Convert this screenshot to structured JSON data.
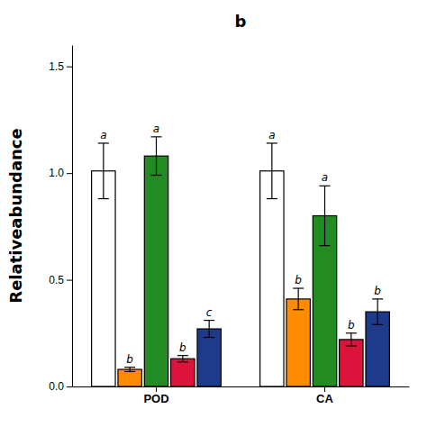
{
  "chart_data": {
    "type": "bar",
    "title": "b",
    "ylabel": "Relativeabundance",
    "categories": [
      "POD",
      "CA"
    ],
    "series": [
      {
        "color": "white",
        "values": [
          1.01,
          1.01
        ],
        "errors": [
          0.13,
          0.13
        ],
        "annotations": [
          "a",
          "a"
        ]
      },
      {
        "color": "#FF8C00",
        "values": [
          0.08,
          0.41
        ],
        "errors": [
          0.01,
          0.05
        ],
        "annotations": [
          "b",
          "b"
        ]
      },
      {
        "color": "#228B22",
        "values": [
          1.08,
          0.8
        ],
        "errors": [
          0.09,
          0.14
        ],
        "annotations": [
          "a",
          "a"
        ]
      },
      {
        "color": "#DC143C",
        "values": [
          0.13,
          0.22
        ],
        "errors": [
          0.015,
          0.03
        ],
        "annotations": [
          "b",
          "b"
        ]
      },
      {
        "color": "#1E3A8A",
        "values": [
          0.27,
          0.35
        ],
        "errors": [
          0.04,
          0.06
        ],
        "annotations": [
          "c",
          "b"
        ]
      }
    ],
    "ylim": [
      0,
      1.6
    ],
    "yticks": [
      {
        "value": 0.0,
        "label": "0.0"
      },
      {
        "value": 0.5,
        "label": "0.5"
      },
      {
        "value": 1.0,
        "label": "1.0"
      },
      {
        "value": 1.5,
        "label": "1.5"
      }
    ],
    "grid": false
  }
}
